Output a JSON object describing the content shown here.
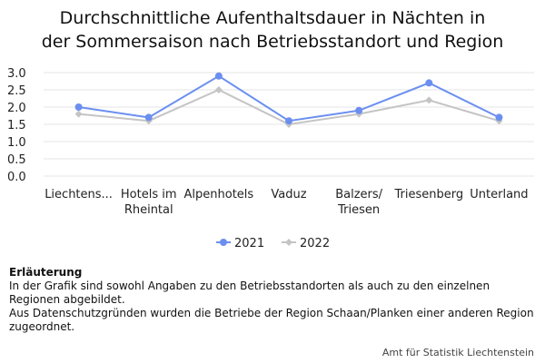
{
  "chart_data": {
    "type": "line",
    "title": [
      "Durchschnittliche Aufenthaltsdauer in Nächten in",
      "der Sommersaison nach Betriebsstandort und Region"
    ],
    "categories": [
      [
        "Liechtens..."
      ],
      [
        "Hotels im",
        "Rheintal"
      ],
      [
        "Alpenhotels"
      ],
      [
        "Vaduz"
      ],
      [
        "Balzers/",
        "Triesen"
      ],
      [
        "Triesenberg"
      ],
      [
        "Unterland"
      ]
    ],
    "series": [
      {
        "name": "2021",
        "color": "#6b8ff0",
        "marker": "circle",
        "values": [
          2.0,
          1.7,
          2.9,
          1.6,
          1.9,
          2.7,
          1.7
        ]
      },
      {
        "name": "2022",
        "color": "#c4c4c4",
        "marker": "diamond",
        "values": [
          1.8,
          1.6,
          2.5,
          1.5,
          1.8,
          2.2,
          1.6
        ]
      }
    ],
    "ylim": [
      0,
      3
    ],
    "yticks": [
      "0.0",
      "0.5",
      "1.0",
      "1.5",
      "2.0",
      "2.5",
      "3.0"
    ],
    "grid": true,
    "legend": "bottom-center"
  },
  "notes": {
    "heading": "Erläuterung",
    "line1": "In der Grafik sind sowohl Angaben zu den Betriebsstandorten als auch zu den einzelnen Regionen abgebildet.",
    "line2": "Aus Datenschutzgründen wurden die Betriebe der Region Schaan/Planken einer anderen Region zugeordnet."
  },
  "credit": "Amt für Statistik Liechtenstein"
}
